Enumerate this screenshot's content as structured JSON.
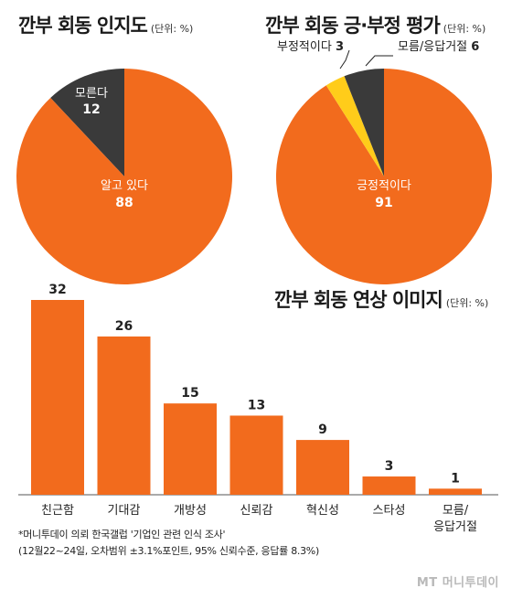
{
  "charts": {
    "awareness": {
      "title": "깐부 회동 인지도",
      "unit": "(단위: %)",
      "slices": [
        {
          "label": "알고 있다",
          "value": 88,
          "color": "#f26b1d"
        },
        {
          "label": "모른다",
          "value": 12,
          "color": "#3a3a3a"
        }
      ]
    },
    "evaluation": {
      "title": "깐부 회동 긍·부정 평가",
      "unit": "(단위: %)",
      "slices": [
        {
          "label": "긍정적이다",
          "value": 91,
          "color": "#f26b1d"
        },
        {
          "label": "부정적이다",
          "value": 3,
          "color": "#ffcc1a"
        },
        {
          "label": "모름/응답거절",
          "value": 6,
          "color": "#3a3a3a"
        }
      ]
    },
    "image": {
      "title": "깐부 회동 연상 이미지",
      "unit": "(단위: %)"
    }
  },
  "chart_data": [
    {
      "type": "pie",
      "title": "깐부 회동 인지도",
      "labels": [
        "알고 있다",
        "모른다"
      ],
      "values": [
        88,
        12
      ]
    },
    {
      "type": "pie",
      "title": "깐부 회동 긍·부정 평가",
      "labels": [
        "긍정적이다",
        "부정적이다",
        "모름/응답거절"
      ],
      "values": [
        91,
        3,
        6
      ]
    },
    {
      "type": "bar",
      "title": "깐부 회동 연상 이미지",
      "categories": [
        "친근함",
        "기대감",
        "개방성",
        "신뢰감",
        "혁신성",
        "스타성",
        "모름/응답거절"
      ],
      "values": [
        32,
        26,
        15,
        13,
        9,
        3,
        1
      ],
      "ylim": [
        0,
        32
      ]
    }
  ],
  "footnote": {
    "line1": "*머니투데이 의뢰 한국갤럽 '기업인 관련 인식 조사'",
    "line2": "(12월22~24일, 오차범위 ±3.1%포인트, 95% 신뢰수준, 응답률 8.3%)"
  },
  "logo": "MT 머니투데이",
  "colors": {
    "orange": "#f26b1d",
    "dark": "#3a3a3a",
    "yellow": "#ffcc1a"
  }
}
